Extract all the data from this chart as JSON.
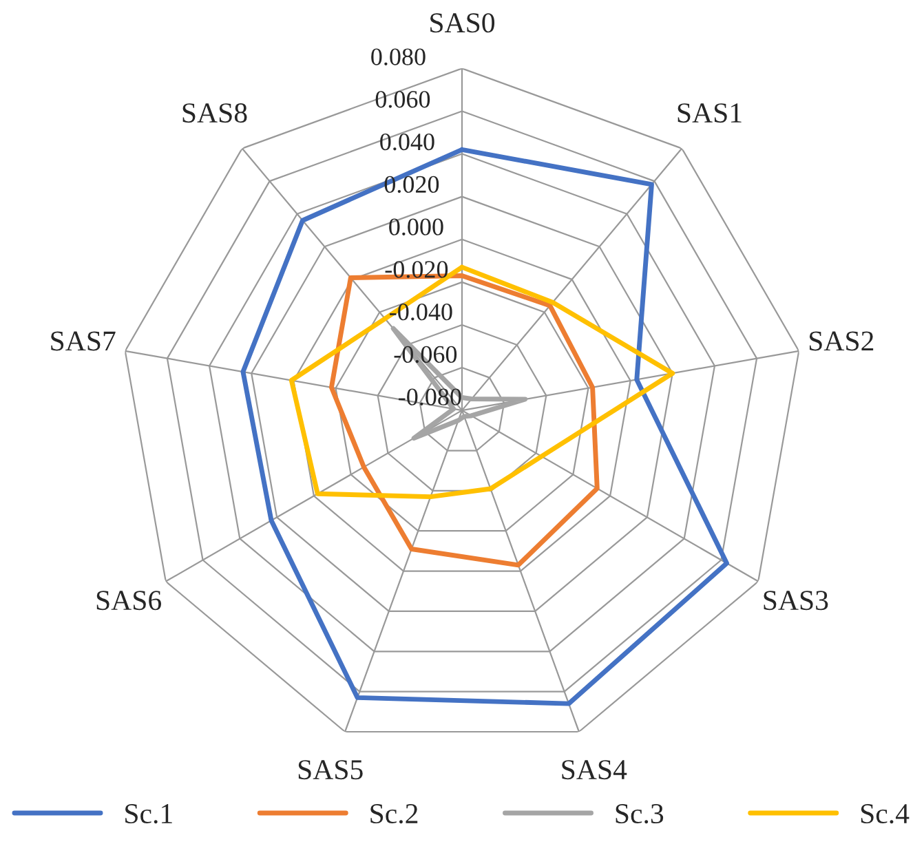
{
  "chart_data": {
    "type": "radar",
    "categories": [
      "SAS0",
      "SAS1",
      "SAS2",
      "SAS3",
      "SAS4",
      "SAS5",
      "SAS6",
      "SAS7",
      "SAS8"
    ],
    "series": [
      {
        "name": "Sc.1",
        "color": "#4472c4",
        "values": [
          0.042,
          0.058,
          0.003,
          0.063,
          0.066,
          0.063,
          0.023,
          0.024,
          0.036
        ]
      },
      {
        "name": "Sc.2",
        "color": "#ed7d31",
        "values": [
          -0.017,
          -0.016,
          -0.018,
          -0.007,
          -0.003,
          -0.011,
          -0.027,
          -0.018,
          0.001
        ]
      },
      {
        "name": "Sc.3",
        "color": "#a5a5a5",
        "values": [
          -0.074,
          -0.073,
          -0.05,
          -0.075,
          -0.077,
          -0.075,
          -0.054,
          -0.076,
          -0.03
        ]
      },
      {
        "name": "Sc.4",
        "color": "#ffc000",
        "values": [
          -0.013,
          -0.014,
          0.02,
          -0.037,
          -0.041,
          -0.037,
          -0.002,
          0.001,
          -0.024
        ]
      }
    ],
    "ylim": [
      -0.08,
      0.08
    ],
    "yticks": [
      {
        "value": -0.08,
        "label": "-0.080"
      },
      {
        "value": -0.06,
        "label": "-0.060"
      },
      {
        "value": -0.04,
        "label": "-0.040"
      },
      {
        "value": -0.02,
        "label": "-0.020"
      },
      {
        "value": 0.0,
        "label": "0.000"
      },
      {
        "value": 0.02,
        "label": "0.020"
      },
      {
        "value": 0.04,
        "label": "0.040"
      },
      {
        "value": 0.06,
        "label": "0.060"
      },
      {
        "value": 0.08,
        "label": "0.080"
      }
    ],
    "grid": true,
    "legend": "bottom",
    "marker": "none",
    "line_style": "solid"
  }
}
